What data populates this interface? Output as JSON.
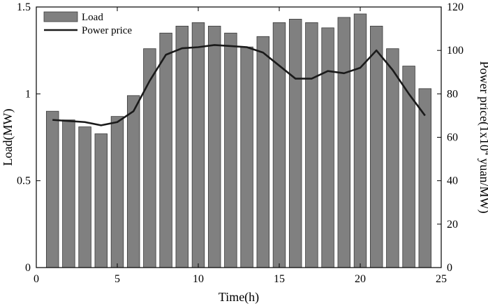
{
  "chart_data": {
    "type": "bar",
    "x": [
      1,
      2,
      3,
      4,
      5,
      6,
      7,
      8,
      9,
      10,
      11,
      12,
      13,
      14,
      15,
      16,
      17,
      18,
      19,
      20,
      21,
      22,
      23,
      24
    ],
    "series": [
      {
        "name": "Load",
        "type": "bar",
        "axis": "left",
        "color": "#808080",
        "values": [
          0.9,
          0.85,
          0.81,
          0.77,
          0.87,
          0.99,
          1.26,
          1.35,
          1.39,
          1.41,
          1.39,
          1.35,
          1.27,
          1.33,
          1.41,
          1.43,
          1.41,
          1.38,
          1.44,
          1.46,
          1.39,
          1.26,
          1.16,
          1.03
        ]
      },
      {
        "name": "Power price",
        "type": "line",
        "axis": "right",
        "color": "#1a1a1a",
        "values": [
          68,
          67.5,
          67,
          65.5,
          67,
          72,
          86,
          98,
          101,
          101.5,
          102.5,
          102,
          101.5,
          99,
          93,
          87,
          87,
          90.5,
          89.5,
          92,
          100,
          91,
          80,
          70
        ]
      }
    ],
    "xlabel": "Time(h)",
    "ylabel_left": "Load(MW)",
    "ylabel_right": {
      "pre": "Power price(1x10",
      "sup": "4",
      "post": " yuan/MW)"
    },
    "xlim": [
      0,
      25
    ],
    "xticks": [
      0,
      5,
      10,
      15,
      20,
      25
    ],
    "ylim_left": [
      0,
      1.5
    ],
    "yticks_left": [
      0,
      0.5,
      1,
      1.5
    ],
    "yticklabels_left": [
      "0",
      "0.5",
      "1",
      "1.5"
    ],
    "ylim_right": [
      0,
      120
    ],
    "yticks_right": [
      0,
      20,
      40,
      60,
      80,
      100,
      120
    ],
    "legend_position": "top-left",
    "grid": false
  }
}
